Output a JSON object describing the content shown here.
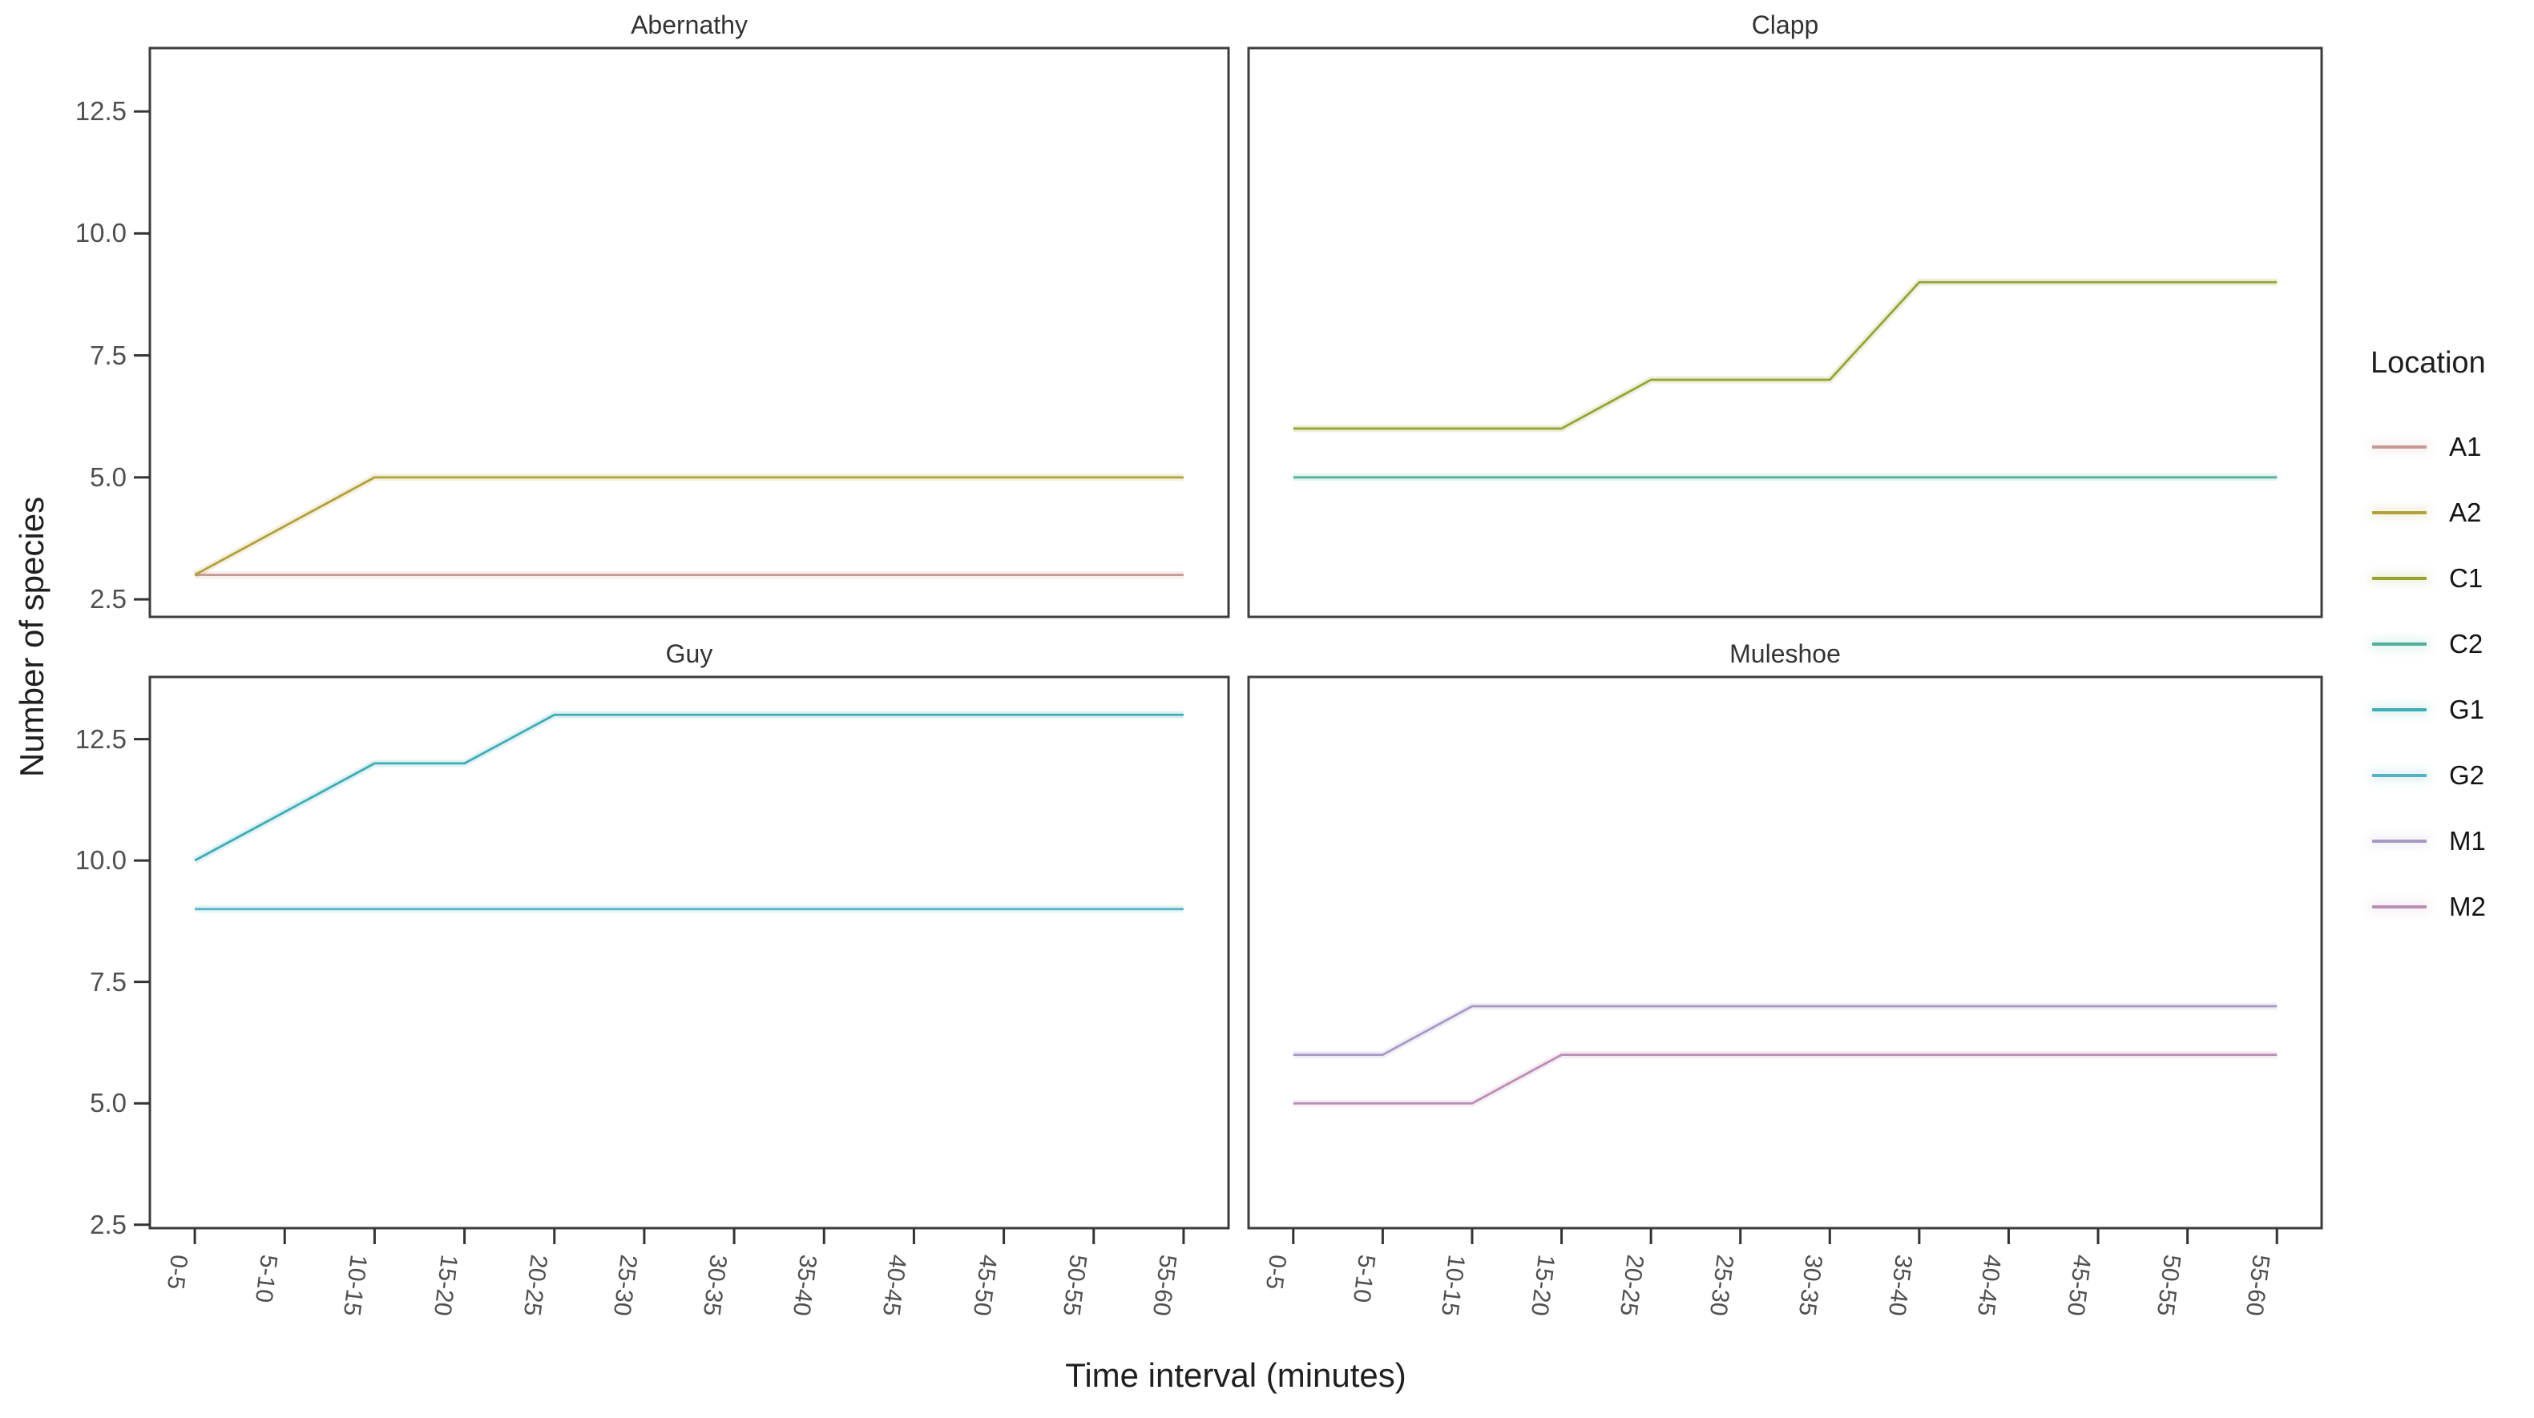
{
  "chart_data": {
    "type": "line",
    "title": "",
    "xlabel": "Time interval (minutes)",
    "ylabel": "Number of species",
    "categories": [
      "0-5",
      "5-10",
      "10-15",
      "15-20",
      "20-25",
      "25-30",
      "30-35",
      "35-40",
      "40-45",
      "45-50",
      "50-55",
      "55-60"
    ],
    "y_tick_values": [
      12.5,
      10.0,
      7.5,
      5.0,
      2.5
    ],
    "y_tick_labels": [
      "12.5",
      "10.0",
      "7.5",
      "5.0",
      "2.5"
    ],
    "ylim": [
      2.4,
      13.8
    ],
    "grid": false,
    "panel_border_color": "#3d3d3d",
    "tick_color": "#333333",
    "panels": [
      {
        "title": "Abernathy",
        "series": [
          {
            "name": "A1",
            "color": "#c69a94",
            "values": [
              3,
              3,
              3,
              3,
              3,
              3,
              3,
              3,
              3,
              3,
              3,
              3
            ]
          },
          {
            "name": "A2",
            "color": "#b2a13b",
            "values": [
              3,
              4,
              5,
              5,
              5,
              5,
              5,
              5,
              5,
              5,
              5,
              5
            ]
          }
        ]
      },
      {
        "title": "Clapp",
        "series": [
          {
            "name": "C1",
            "color": "#97a433",
            "values": [
              6,
              6,
              6,
              6,
              7,
              7,
              7,
              9,
              9,
              9,
              9,
              9
            ]
          },
          {
            "name": "C2",
            "color": "#4fb099",
            "values": [
              5,
              5,
              5,
              5,
              5,
              5,
              5,
              5,
              5,
              5,
              5,
              5
            ]
          }
        ]
      },
      {
        "title": "Guy",
        "series": [
          {
            "name": "G1",
            "color": "#3fadb4",
            "values": [
              10,
              11,
              12,
              12,
              13,
              13,
              13,
              13,
              13,
              13,
              13,
              13
            ]
          },
          {
            "name": "G2",
            "color": "#55b2c3",
            "values": [
              9,
              9,
              9,
              9,
              9,
              9,
              9,
              9,
              9,
              9,
              9,
              9
            ]
          }
        ]
      },
      {
        "title": "Muleshoe",
        "series": [
          {
            "name": "M1",
            "color": "#a79ac4",
            "values": [
              6,
              6,
              7,
              7,
              7,
              7,
              7,
              7,
              7,
              7,
              7,
              7
            ]
          },
          {
            "name": "M2",
            "color": "#bb8fb4",
            "values": [
              5,
              5,
              5,
              6,
              6,
              6,
              6,
              6,
              6,
              6,
              6,
              6
            ]
          }
        ]
      }
    ],
    "legend": {
      "title": "Location",
      "position": "right",
      "items": [
        {
          "label": "A1",
          "color": "#c69a94"
        },
        {
          "label": "A2",
          "color": "#b2a13b"
        },
        {
          "label": "C1",
          "color": "#97a433"
        },
        {
          "label": "C2",
          "color": "#4fb099"
        },
        {
          "label": "G1",
          "color": "#3fadb4"
        },
        {
          "label": "G2",
          "color": "#55b2c3"
        },
        {
          "label": "M1",
          "color": "#a79ac4"
        },
        {
          "label": "M2",
          "color": "#bb8fb4"
        }
      ]
    }
  }
}
